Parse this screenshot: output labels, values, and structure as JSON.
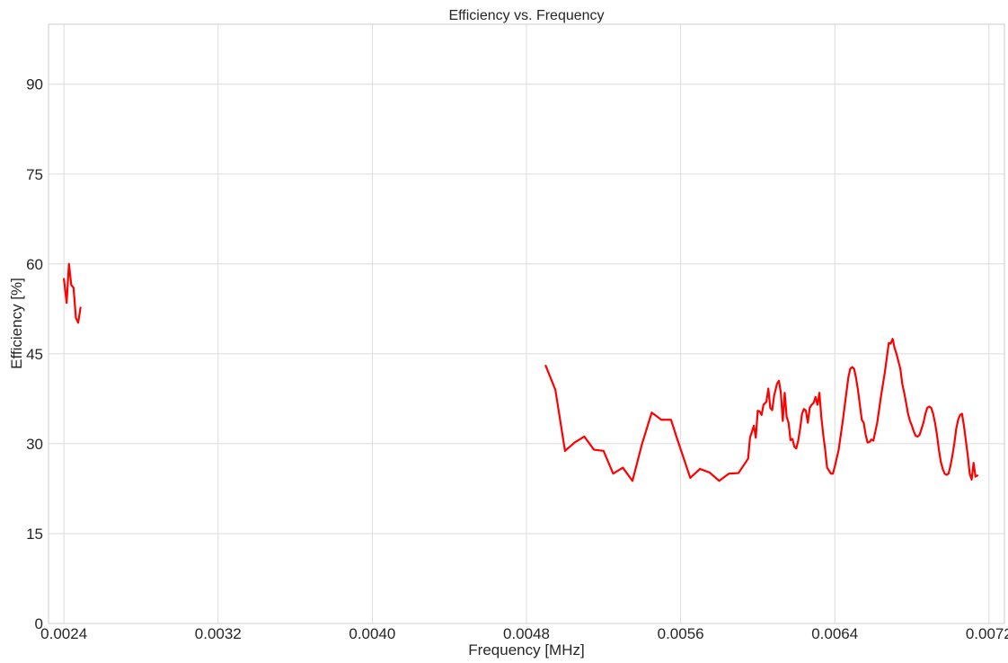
{
  "chart_data": {
    "type": "line",
    "title": "Efficiency vs. Frequency",
    "xlabel": "Frequency [MHz]",
    "ylabel": "Efficiency [%]",
    "xlim": [
      0.00232,
      0.00728
    ],
    "ylim": [
      0,
      100
    ],
    "xticks": [
      0.0024,
      0.0032,
      0.004,
      0.0048,
      0.0056,
      0.0064,
      0.0072
    ],
    "xtick_labels": [
      "0.0024",
      "0.0032",
      "0.0040",
      "0.0048",
      "0.0056",
      "0.0064",
      "0.0072"
    ],
    "yticks": [
      0,
      15,
      30,
      45,
      60,
      75,
      90
    ],
    "ytick_labels": [
      "0",
      "15",
      "30",
      "45",
      "60",
      "75",
      "90"
    ],
    "grid": true,
    "legend": "none",
    "series": [
      {
        "color": "#ff0000",
        "segments": [
          [
            [
              0.0024,
              57.5
            ],
            [
              0.002414,
              53.5
            ],
            [
              0.002426,
              60.0
            ],
            [
              0.002438,
              56.5
            ],
            [
              0.00245,
              56.0
            ],
            [
              0.002462,
              51.0
            ],
            [
              0.002474,
              50.2
            ],
            [
              0.002486,
              52.7
            ]
          ],
          [
            [
              0.0049,
              43.0
            ],
            [
              0.00495,
              39.0
            ],
            [
              0.005,
              28.8
            ],
            [
              0.00505,
              30.2
            ],
            [
              0.0051,
              31.2
            ],
            [
              0.00515,
              29.0
            ],
            [
              0.0052,
              28.8
            ],
            [
              0.00525,
              25.0
            ],
            [
              0.0053,
              26.0
            ],
            [
              0.00535,
              23.8
            ],
            [
              0.0054,
              30.0
            ],
            [
              0.00545,
              35.2
            ],
            [
              0.0055,
              34.0
            ],
            [
              0.00555,
              34.0
            ],
            [
              0.00558,
              31.0
            ],
            [
              0.00565,
              24.3
            ],
            [
              0.0057,
              25.8
            ],
            [
              0.00575,
              25.2
            ],
            [
              0.0058,
              23.8
            ],
            [
              0.00585,
              25.0
            ],
            [
              0.0059,
              25.1
            ],
            [
              0.00595,
              27.5
            ],
            [
              0.00596,
              31.0
            ],
            [
              0.00598,
              33.0
            ],
            [
              0.00599,
              31.0
            ],
            [
              0.006,
              35.5
            ],
            [
              0.00601,
              35.4
            ],
            [
              0.00602,
              34.8
            ],
            [
              0.00603,
              36.5
            ],
            [
              0.006045,
              37.0
            ],
            [
              0.006055,
              39.2
            ],
            [
              0.006065,
              36.0
            ],
            [
              0.006075,
              35.6
            ],
            [
              0.006085,
              38.0
            ],
            [
              0.0061,
              40.0
            ],
            [
              0.00611,
              40.5
            ],
            [
              0.00612,
              38.5
            ],
            [
              0.00613,
              33.8
            ],
            [
              0.00614,
              38.5
            ],
            [
              0.00615,
              34.5
            ],
            [
              0.00616,
              33.5
            ],
            [
              0.00617,
              30.6
            ],
            [
              0.00618,
              30.8
            ],
            [
              0.00619,
              29.5
            ],
            [
              0.0062,
              29.2
            ],
            [
              0.00621,
              30.5
            ],
            [
              0.00622,
              32.5
            ],
            [
              0.00623,
              35.0
            ],
            [
              0.00624,
              35.8
            ],
            [
              0.00625,
              35.5
            ],
            [
              0.00626,
              33.5
            ],
            [
              0.00627,
              36.0
            ],
            [
              0.00628,
              36.5
            ],
            [
              0.00629,
              36.8
            ],
            [
              0.0063,
              37.8
            ],
            [
              0.00631,
              36.5
            ],
            [
              0.00632,
              38.5
            ],
            [
              0.00633,
              34.5
            ],
            [
              0.00634,
              31.5
            ],
            [
              0.00635,
              29.0
            ],
            [
              0.00636,
              26.0
            ],
            [
              0.00638,
              25.0
            ],
            [
              0.00639,
              25.0
            ],
            [
              0.0064,
              26.2
            ],
            [
              0.00642,
              29.0
            ],
            [
              0.00644,
              33.5
            ],
            [
              0.00646,
              38.5
            ],
            [
              0.00647,
              41.0
            ],
            [
              0.00648,
              42.5
            ],
            [
              0.00649,
              42.8
            ],
            [
              0.0065,
              42.5
            ],
            [
              0.00651,
              41.0
            ],
            [
              0.00652,
              39.0
            ],
            [
              0.00654,
              34.0
            ],
            [
              0.00655,
              33.5
            ],
            [
              0.00656,
              31.5
            ],
            [
              0.00657,
              30.2
            ],
            [
              0.00658,
              30.3
            ],
            [
              0.00659,
              30.7
            ],
            [
              0.0066,
              30.5
            ],
            [
              0.00662,
              33.5
            ],
            [
              0.00664,
              38.0
            ],
            [
              0.00666,
              42.0
            ],
            [
              0.00668,
              46.8
            ],
            [
              0.00669,
              46.7
            ],
            [
              0.0067,
              47.5
            ],
            [
              0.00671,
              46.0
            ],
            [
              0.00672,
              45.0
            ],
            [
              0.00674,
              42.5
            ],
            [
              0.00675,
              40.0
            ],
            [
              0.00676,
              38.5
            ],
            [
              0.00677,
              36.8
            ],
            [
              0.00678,
              35.0
            ],
            [
              0.00679,
              33.8
            ],
            [
              0.0068,
              33.0
            ],
            [
              0.00681,
              32.0
            ],
            [
              0.00682,
              31.3
            ],
            [
              0.00683,
              31.2
            ],
            [
              0.00684,
              31.5
            ],
            [
              0.00685,
              32.5
            ],
            [
              0.00686,
              33.5
            ],
            [
              0.00687,
              35.0
            ],
            [
              0.00688,
              36.0
            ],
            [
              0.00689,
              36.2
            ],
            [
              0.0069,
              36.0
            ],
            [
              0.00691,
              35.0
            ],
            [
              0.00692,
              33.5
            ],
            [
              0.00693,
              31.5
            ],
            [
              0.00694,
              29.0
            ],
            [
              0.00695,
              27.0
            ],
            [
              0.00696,
              25.8
            ],
            [
              0.00697,
              25.0
            ],
            [
              0.00698,
              24.8
            ],
            [
              0.00699,
              25.0
            ],
            [
              0.007,
              26.3
            ],
            [
              0.00701,
              28.0
            ],
            [
              0.00702,
              30.0
            ],
            [
              0.00703,
              32.5
            ],
            [
              0.00704,
              34.0
            ],
            [
              0.00705,
              34.8
            ],
            [
              0.00706,
              35.0
            ],
            [
              0.00707,
              33.0
            ],
            [
              0.00708,
              30.5
            ],
            [
              0.00709,
              28.0
            ],
            [
              0.0071,
              25.0
            ],
            [
              0.00711,
              24.0
            ],
            [
              0.00712,
              26.8
            ],
            [
              0.00713,
              24.5
            ],
            [
              0.00714,
              24.7
            ]
          ]
        ]
      }
    ]
  }
}
